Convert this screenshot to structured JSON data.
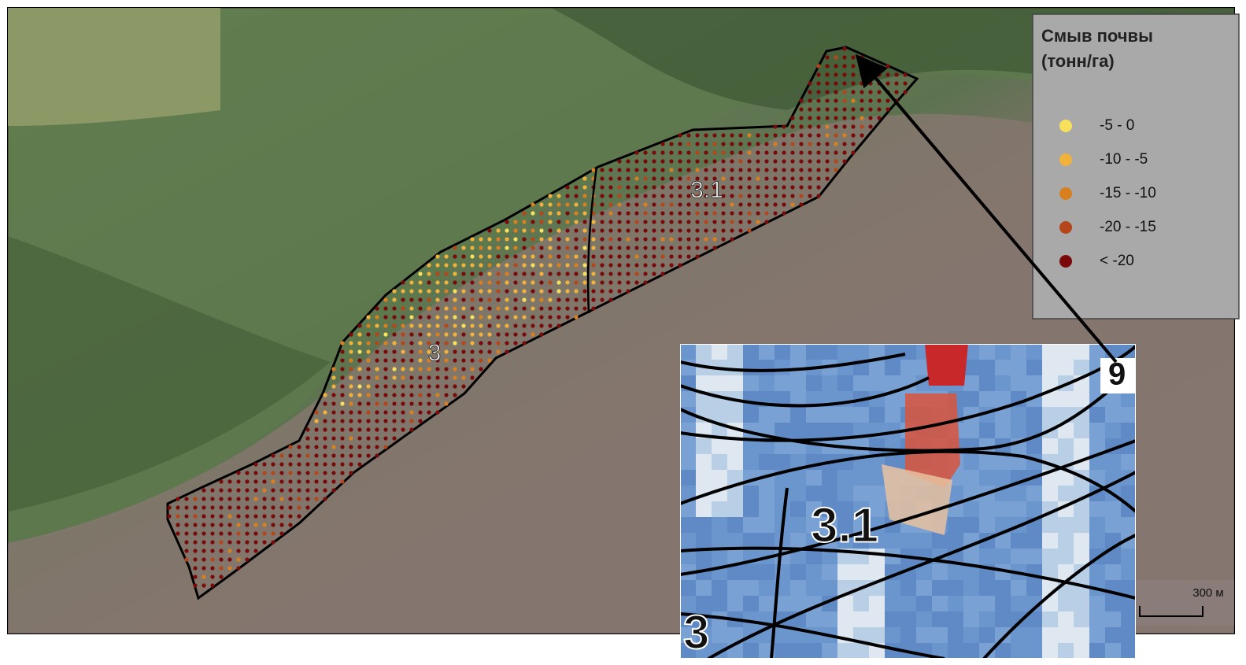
{
  "legend": {
    "title": [
      "Смыв почвы",
      "(тонн/га)"
    ],
    "items": [
      {
        "label": "-5 - 0",
        "color": "#f7e15c"
      },
      {
        "label": "-10 - -5",
        "color": "#f0b23a"
      },
      {
        "label": "-15 - -10",
        "color": "#d8801f"
      },
      {
        "label": "-20 - -15",
        "color": "#b4461a"
      },
      {
        "label": "< -20",
        "color": "#7a0a0a"
      }
    ]
  },
  "map_labels": [
    "3",
    "3.1"
  ],
  "inset": {
    "labels": [
      "3.1",
      "3",
      "9"
    ]
  },
  "scale_bar": {
    "label": "300 м"
  }
}
